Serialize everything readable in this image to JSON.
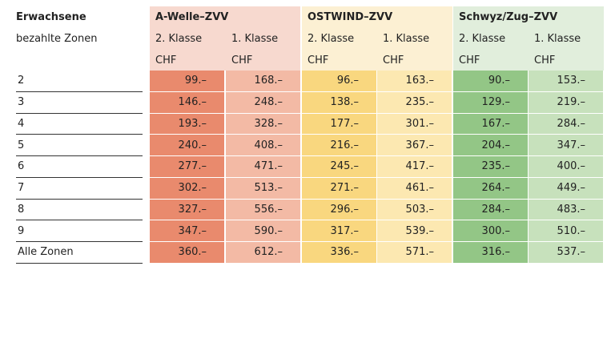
{
  "header": {
    "title": "Erwachsene",
    "subtitle": "bezahlte Zonen",
    "groups": [
      {
        "name": "A-Welle–ZVV",
        "classes": [
          "2. Klasse",
          "1. Klasse"
        ],
        "currency": [
          "CHF",
          "CHF"
        ]
      },
      {
        "name": "OSTWIND–ZVV",
        "classes": [
          "2. Klasse",
          "1. Klasse"
        ],
        "currency": [
          "CHF",
          "CHF"
        ]
      },
      {
        "name": "Schwyz/Zug–ZVV",
        "classes": [
          "2. Klasse",
          "1. Klasse"
        ],
        "currency": [
          "CHF",
          "CHF"
        ]
      }
    ]
  },
  "rows": [
    {
      "zone": "2",
      "values": [
        "99.–",
        "168.–",
        "96.–",
        "163.–",
        "90.–",
        "153.–"
      ]
    },
    {
      "zone": "3",
      "values": [
        "146.–",
        "248.–",
        "138.–",
        "235.–",
        "129.–",
        "219.–"
      ]
    },
    {
      "zone": "4",
      "values": [
        "193.–",
        "328.–",
        "177.–",
        "301.–",
        "167.–",
        "284.–"
      ]
    },
    {
      "zone": "5",
      "values": [
        "240.–",
        "408.–",
        "216.–",
        "367.–",
        "204.–",
        "347.–"
      ]
    },
    {
      "zone": "6",
      "values": [
        "277.–",
        "471.–",
        "245.–",
        "417.–",
        "235.–",
        "400.–"
      ]
    },
    {
      "zone": "7",
      "values": [
        "302.–",
        "513.–",
        "271.–",
        "461.–",
        "264.–",
        "449.–"
      ]
    },
    {
      "zone": "8",
      "values": [
        "327.–",
        "556.–",
        "296.–",
        "503.–",
        "284.–",
        "483.–"
      ]
    },
    {
      "zone": "9",
      "values": [
        "347.–",
        "590.–",
        "317.–",
        "539.–",
        "300.–",
        "510.–"
      ]
    },
    {
      "zone": "Alle Zonen",
      "values": [
        "360.–",
        "612.–",
        "336.–",
        "571.–",
        "316.–",
        "537.–"
      ]
    }
  ]
}
